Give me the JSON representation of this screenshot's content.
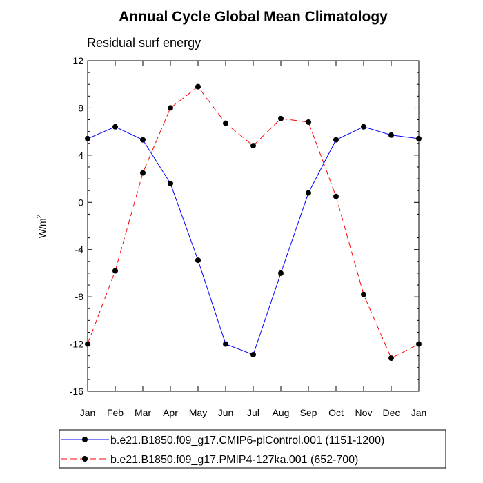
{
  "chart_data": {
    "type": "line",
    "title": "Annual Cycle Global Mean Climatology",
    "subtitle": "Residual surf energy",
    "ylabel": "W/m",
    "ylabel_sup": "2",
    "xlabel": "",
    "categories": [
      "Jan",
      "Feb",
      "Mar",
      "Apr",
      "May",
      "Jun",
      "Jul",
      "Aug",
      "Sep",
      "Oct",
      "Nov",
      "Dec",
      "Jan"
    ],
    "ylim": [
      -16,
      12
    ],
    "yticks": [
      -16,
      -12,
      -8,
      -4,
      0,
      4,
      8,
      12
    ],
    "grid": false,
    "legend_position": "bottom",
    "series": [
      {
        "name": "b.e21.B1850.f09_g17.CMIP6-piControl.001 (1151-1200)",
        "color": "#0000ff",
        "line_style": "solid",
        "marker": "filled-circle",
        "values": [
          5.4,
          6.4,
          5.3,
          1.6,
          -4.9,
          -12.0,
          -12.9,
          -6.0,
          0.8,
          5.3,
          6.4,
          5.7,
          5.4
        ]
      },
      {
        "name": "b.e21.B1850.f09_g17.PMIP4-127ka.001 (652-700)",
        "color": "#ff0000",
        "line_style": "dashed",
        "marker": "filled-circle",
        "values": [
          -12.0,
          -5.8,
          2.5,
          8.0,
          9.8,
          6.7,
          4.8,
          7.1,
          6.8,
          0.5,
          -7.8,
          -13.2,
          -12.0
        ]
      }
    ]
  }
}
